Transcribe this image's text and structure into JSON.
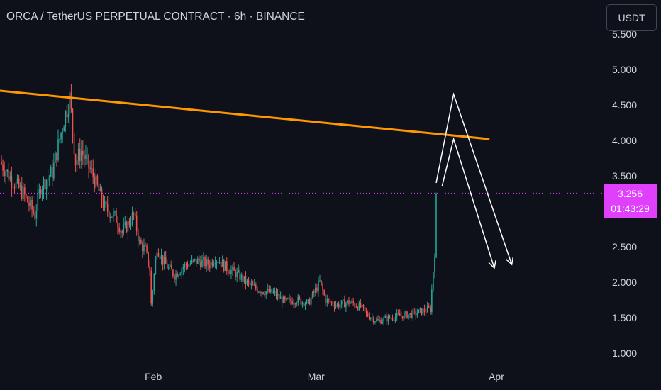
{
  "header": {
    "title": "ORCA / TetherUS PERPETUAL CONTRACT · 6h · BINANCE",
    "currency_button": "USDT"
  },
  "price_badge": {
    "price": "3.256",
    "countdown": "01:43:29",
    "color": "#e040fb"
  },
  "colors": {
    "up": "#26a69a",
    "down": "#ef5350",
    "trendline": "#ff9800",
    "projection": "#ffffff",
    "background": "#0f111a"
  },
  "chart_data": {
    "type": "candlestick",
    "x_ticks": [
      "Feb",
      "Mar",
      "Apr"
    ],
    "y_ticks": [
      "1.000",
      "1.500",
      "2.000",
      "2.500",
      "3.500",
      "4.000",
      "4.500",
      "5.000",
      "5.500"
    ],
    "ylim": [
      0.9,
      5.6
    ],
    "current_price": 3.256,
    "price_path": [
      [
        "Jan 06",
        3.7
      ],
      [
        "Jan 08",
        3.45
      ],
      [
        "Jan 10",
        3.25
      ],
      [
        "Jan 12",
        2.95
      ],
      [
        "Jan 13",
        3.35
      ],
      [
        "Jan 15",
        3.55
      ],
      [
        "Jan 17",
        4.3
      ],
      [
        "Jan 18",
        4.6
      ],
      [
        "Jan 19",
        3.7
      ],
      [
        "Jan 20",
        3.85
      ],
      [
        "Jan 22",
        3.5
      ],
      [
        "Jan 24",
        3.05
      ],
      [
        "Jan 26",
        2.9
      ],
      [
        "Jan 27",
        2.7
      ],
      [
        "Jan 29",
        2.95
      ],
      [
        "Jan 30",
        2.55
      ],
      [
        "Jan 31",
        2.45
      ],
      [
        "Feb 01",
        2.1
      ],
      [
        "Feb 01",
        1.7
      ],
      [
        "Feb 02",
        2.5
      ],
      [
        "Feb 03",
        2.3
      ],
      [
        "Feb 05",
        2.1
      ],
      [
        "Feb 07",
        2.25
      ],
      [
        "Feb 09",
        2.3
      ],
      [
        "Feb 11",
        2.25
      ],
      [
        "Feb 12",
        2.35
      ],
      [
        "Feb 14",
        2.2
      ],
      [
        "Feb 16",
        2.1
      ],
      [
        "Feb 18",
        1.95
      ],
      [
        "Feb 20",
        1.88
      ],
      [
        "Feb 22",
        1.85
      ],
      [
        "Feb 24",
        1.72
      ],
      [
        "Feb 26",
        1.75
      ],
      [
        "Feb 28",
        1.7
      ],
      [
        "Mar 02",
        2.0
      ],
      [
        "Mar 03",
        1.75
      ],
      [
        "Mar 05",
        1.68
      ],
      [
        "Mar 07",
        1.72
      ],
      [
        "Mar 09",
        1.65
      ],
      [
        "Mar 10",
        1.55
      ],
      [
        "Mar 12",
        1.45
      ],
      [
        "Mar 14",
        1.5
      ],
      [
        "Mar 16",
        1.53
      ],
      [
        "Mar 18",
        1.55
      ],
      [
        "Mar 20",
        1.6
      ],
      [
        "Mar 21",
        1.62
      ],
      [
        "Mar 22",
        2.7
      ],
      [
        "Mar 22",
        3.25
      ]
    ],
    "trendline": [
      [
        "Jan 06",
        4.7
      ],
      [
        "Mar 31",
        4.02
      ]
    ],
    "projections": [
      [
        [
          "Mar 22",
          3.4
        ],
        [
          "Mar 25",
          4.65
        ],
        [
          "Apr 04",
          2.25
        ]
      ],
      [
        [
          "Mar 23",
          3.35
        ],
        [
          "Mar 25",
          4.02
        ],
        [
          "Apr 01",
          2.2
        ]
      ]
    ]
  }
}
